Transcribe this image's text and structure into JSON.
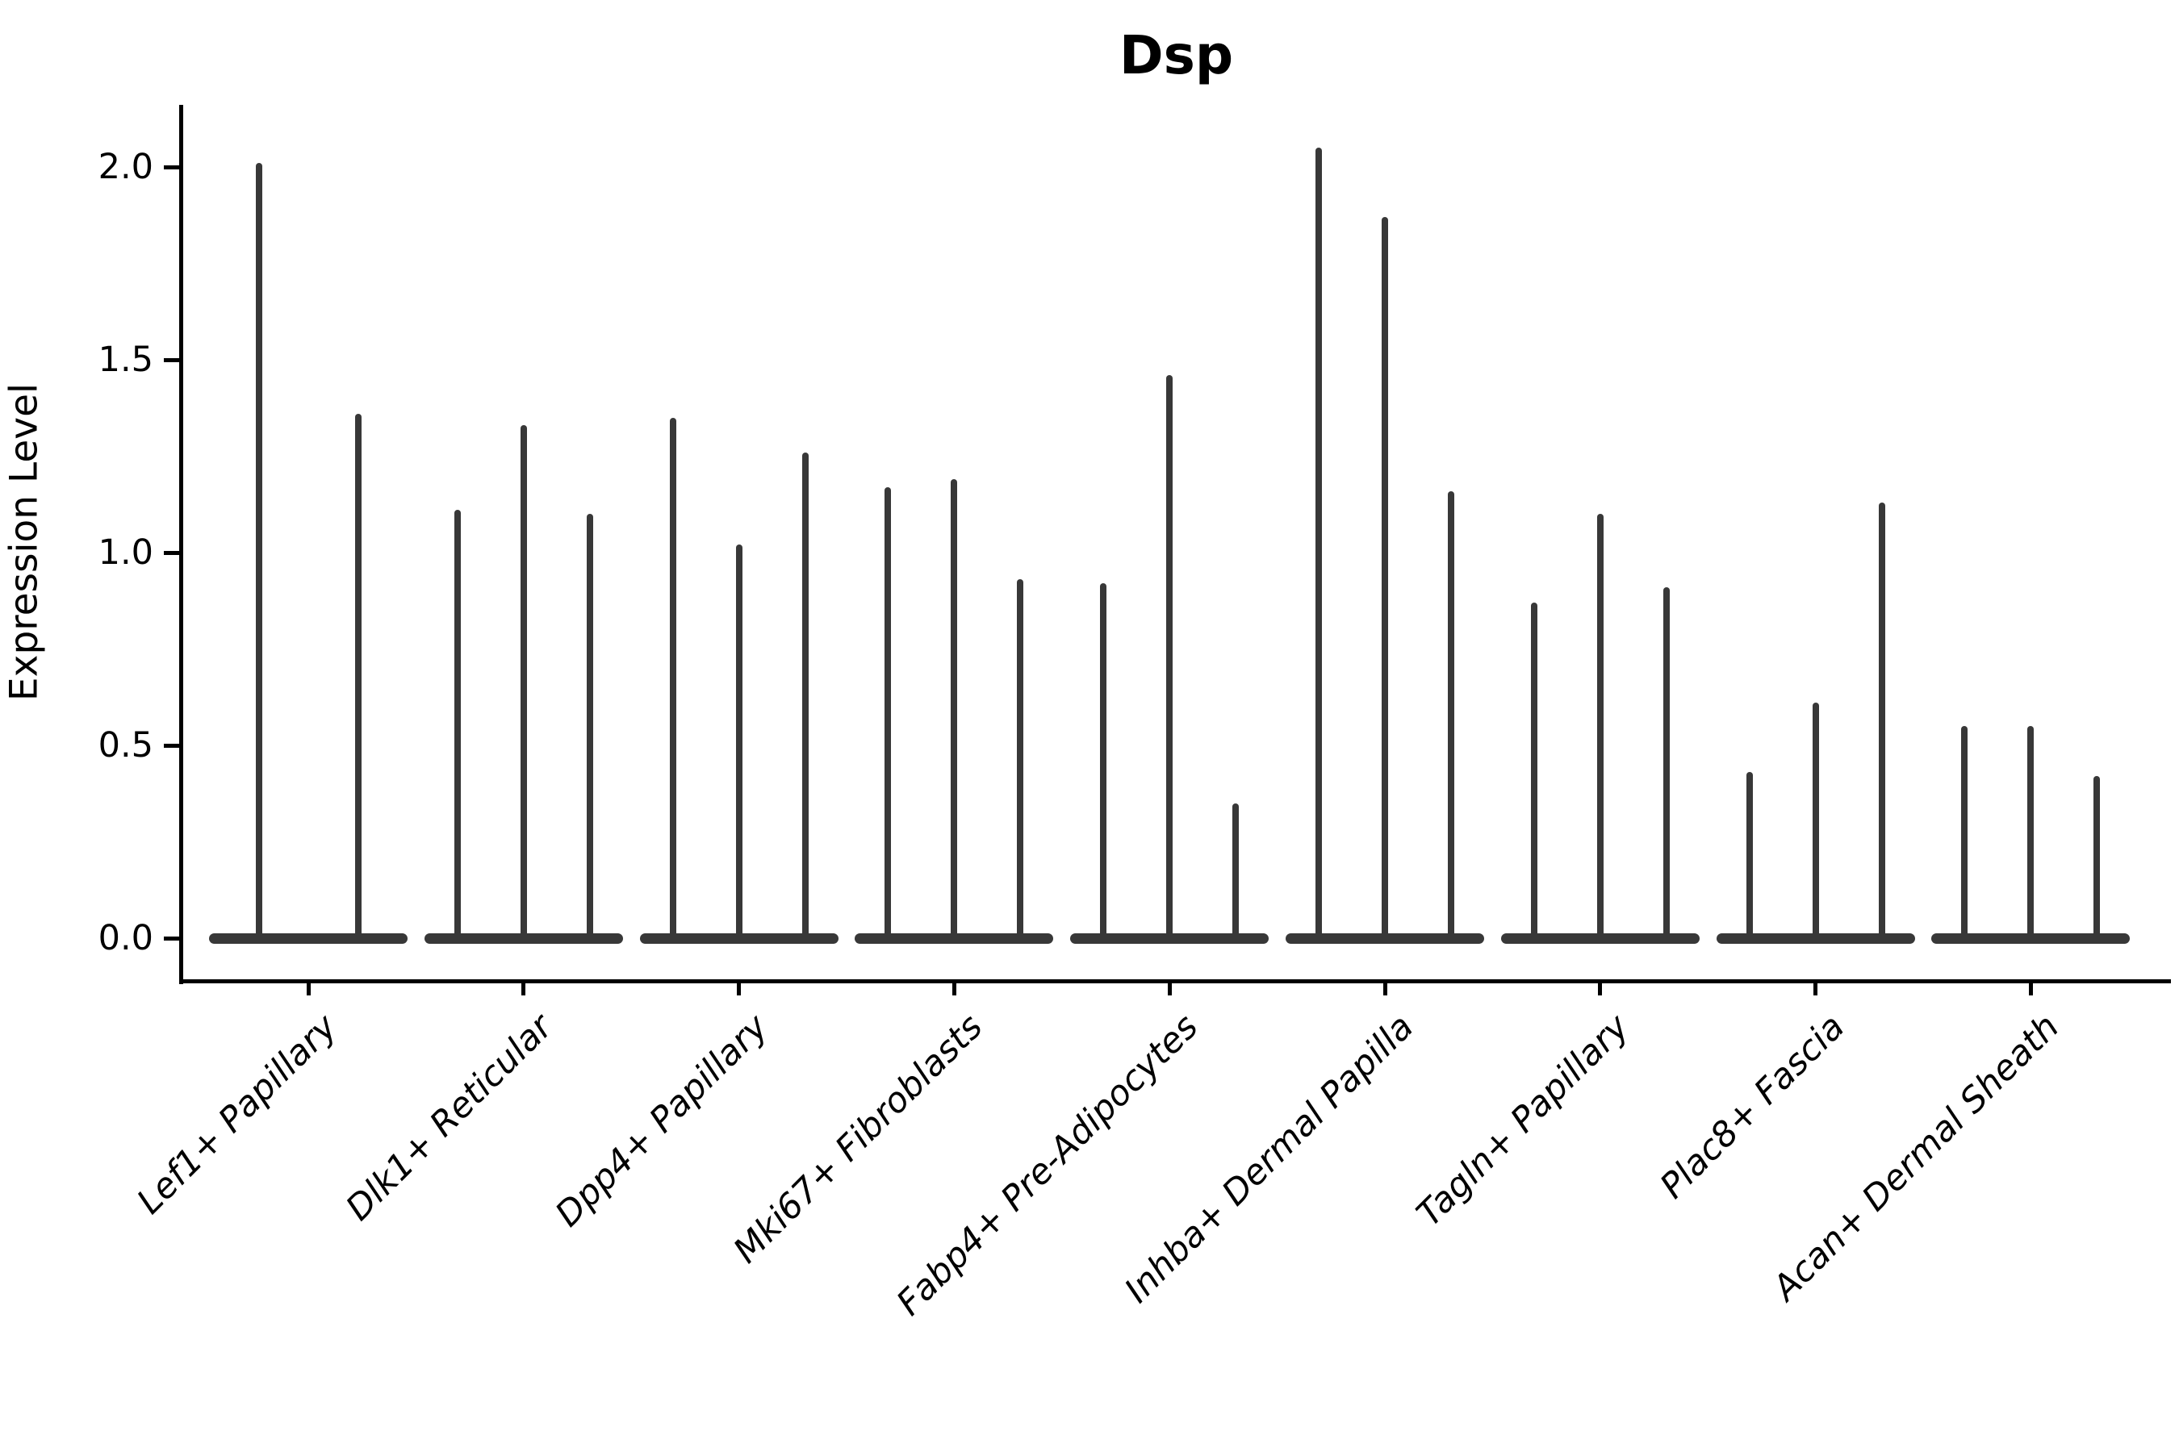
{
  "page": {
    "background_color": "#ffffff",
    "axis_color": "#000000",
    "violin_color": "#383838"
  },
  "chart_data": {
    "type": "violin",
    "title": "Dsp",
    "xlabel": "",
    "ylabel": "Expression Level",
    "ylim": [
      -0.05,
      2.15
    ],
    "yticks": [
      0.0,
      0.5,
      1.0,
      1.5,
      2.0
    ],
    "ytick_labels": [
      "0.0",
      "0.5",
      "1.0",
      "1.5",
      "2.0"
    ],
    "grid": false,
    "legend_position": "none",
    "x_label_rotation_deg": 45,
    "x_label_style": "italic",
    "description": "Single-cell expression violin plot; each category shows thin violins concentrated at 0 with a narrow spike up to the maximum expression value.",
    "categories": [
      "Lef1+ Papillary",
      "Dlk1+ Reticular",
      "Dpp4+ Papillary",
      "Mki67+ Fibroblasts",
      "Fabp4+ Pre-Adipocytes",
      "Inhba+ Dermal Papilla",
      "Tagln+ Papillary",
      "Plac8+ Fascia",
      "Acan+ Dermal Sheath"
    ],
    "series": [
      {
        "category": "Lef1+ Papillary",
        "violin_max_values": [
          2.01,
          1.36
        ]
      },
      {
        "category": "Dlk1+ Reticular",
        "violin_max_values": [
          1.11,
          1.33,
          1.1
        ]
      },
      {
        "category": "Dpp4+ Papillary",
        "violin_max_values": [
          1.35,
          1.02,
          1.26
        ]
      },
      {
        "category": "Mki67+ Fibroblasts",
        "violin_max_values": [
          1.17,
          1.19,
          0.93
        ]
      },
      {
        "category": "Fabp4+ Pre-Adipocytes",
        "violin_max_values": [
          0.92,
          1.46,
          0.35
        ]
      },
      {
        "category": "Inhba+ Dermal Papilla",
        "violin_max_values": [
          2.05,
          1.87,
          1.16
        ]
      },
      {
        "category": "Tagln+ Papillary",
        "violin_max_values": [
          0.87,
          1.1,
          0.91
        ]
      },
      {
        "category": "Plac8+ Fascia",
        "violin_max_values": [
          0.43,
          0.61,
          1.13
        ]
      },
      {
        "category": "Acan+ Dermal Sheath",
        "violin_max_values": [
          0.55,
          0.55,
          0.42
        ]
      }
    ]
  }
}
